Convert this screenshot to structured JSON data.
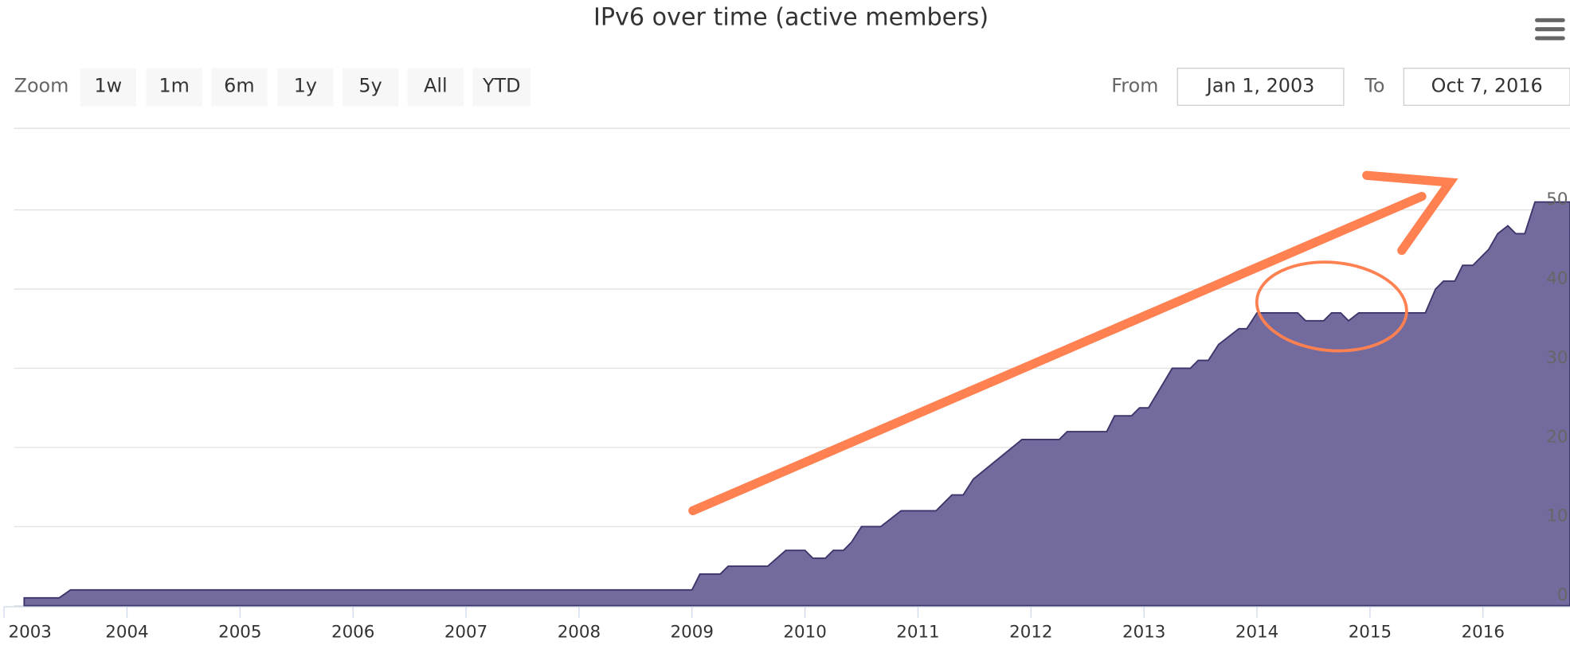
{
  "chart_data": {
    "type": "area",
    "title": "IPv6 over time (active members)",
    "controls": {
      "zoom_label": "Zoom",
      "buttons": [
        "1w",
        "1m",
        "6m",
        "1y",
        "5y",
        "All",
        "YTD"
      ],
      "from_label": "From",
      "from": "Jan 1, 2003",
      "to_label": "To",
      "to": "Oct 7, 2016"
    },
    "x": [
      2003.09,
      2003.4,
      2003.5,
      2009.0,
      2009.07,
      2009.25,
      2009.32,
      2009.67,
      2009.83,
      2010.0,
      2010.07,
      2010.18,
      2010.25,
      2010.34,
      2010.41,
      2010.5,
      2010.67,
      2010.85,
      2011.16,
      2011.3,
      2011.4,
      2011.49,
      2011.92,
      2012.25,
      2012.32,
      2012.67,
      2012.74,
      2012.89,
      2012.96,
      2013.04,
      2013.25,
      2013.41,
      2013.48,
      2013.57,
      2013.66,
      2013.84,
      2013.91,
      2014.0,
      2014.36,
      2014.43,
      2014.59,
      2014.66,
      2014.74,
      2014.81,
      2014.9,
      2015.49,
      2015.58,
      2015.65,
      2015.75,
      2015.82,
      2015.91,
      2016.05,
      2016.13,
      2016.22,
      2016.29,
      2016.37,
      2016.46,
      2016.77
    ],
    "series": [
      {
        "color": "#736b9d",
        "values": [
          1,
          1,
          2,
          2,
          4,
          4,
          5,
          5,
          7,
          7,
          6,
          6,
          7,
          7,
          8,
          10,
          10,
          12,
          12,
          14,
          14,
          16,
          21,
          21,
          22,
          22,
          24,
          24,
          25,
          25,
          30,
          30,
          31,
          31,
          33,
          35,
          35,
          37,
          37,
          36,
          36,
          37,
          37,
          36,
          37,
          37,
          40,
          41,
          41,
          43,
          43,
          45,
          47,
          48,
          47,
          47,
          51,
          51
        ]
      }
    ],
    "xlim": [
      2003,
      2016.77
    ],
    "xticks": [
      2003,
      2004,
      2005,
      2006,
      2007,
      2008,
      2009,
      2010,
      2011,
      2012,
      2013,
      2014,
      2015,
      2016
    ],
    "ylim": [
      0,
      55
    ],
    "yticks": [
      0,
      10,
      20,
      30,
      40,
      50
    ],
    "grid": true
  }
}
